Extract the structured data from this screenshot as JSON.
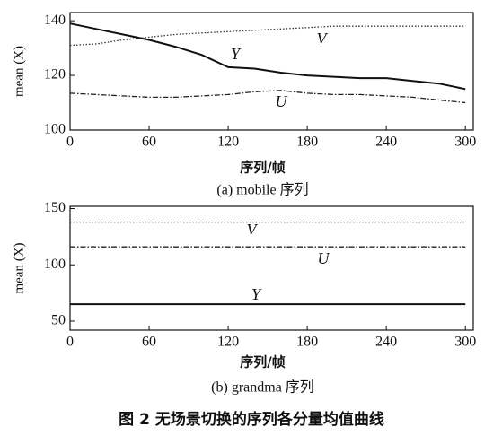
{
  "chart_data": [
    {
      "type": "line",
      "x": [
        0,
        20,
        40,
        60,
        80,
        100,
        120,
        140,
        160,
        180,
        200,
        220,
        240,
        260,
        280,
        300
      ],
      "series": [
        {
          "name": "Y",
          "color": "#111111",
          "line_style": "solid",
          "values": [
            139,
            137,
            135,
            133,
            130.5,
            127.5,
            123,
            122.5,
            121,
            120,
            119.5,
            119,
            119,
            118,
            117,
            115
          ]
        },
        {
          "name": "V",
          "color": "#333333",
          "line_style": "dotted",
          "values": [
            131,
            131.5,
            133,
            134,
            135,
            135.5,
            136,
            136.5,
            137,
            137.5,
            138,
            138,
            138,
            138,
            138,
            138
          ]
        },
        {
          "name": "U",
          "color": "#222222",
          "line_style": "dashdot",
          "values": [
            113.5,
            113,
            112.5,
            112,
            112,
            112.5,
            113,
            114,
            114.5,
            113.5,
            113,
            113,
            112.5,
            112,
            111,
            110
          ]
        }
      ],
      "xlim": [
        0,
        306
      ],
      "xticks": [
        0,
        60,
        120,
        180,
        240,
        300
      ],
      "ylim": [
        100,
        143
      ],
      "yticks": [
        100,
        120,
        140
      ],
      "x_label": "序列/帧",
      "y_label": "mean (X)",
      "caption": "(a) mobile 序列",
      "grid": false
    },
    {
      "type": "line",
      "x": [
        0,
        300
      ],
      "series": [
        {
          "name": "V",
          "color": "#333333",
          "line_style": "dotted",
          "values": [
            138,
            138
          ]
        },
        {
          "name": "U",
          "color": "#222222",
          "line_style": "dashdot",
          "values": [
            116,
            116
          ]
        },
        {
          "name": "Y",
          "color": "#111111",
          "line_style": "solid",
          "values": [
            65,
            65
          ]
        }
      ],
      "xlim": [
        0,
        306
      ],
      "xticks": [
        0,
        60,
        120,
        180,
        240,
        300
      ],
      "ylim": [
        42,
        152
      ],
      "yticks": [
        50,
        100,
        150
      ],
      "x_label": "序列/帧",
      "y_label": "mean (X)",
      "caption": "(b) grandma 序列",
      "grid": false
    }
  ],
  "figure_caption": "图 2   无场景切换的序列各分量均值曲线"
}
